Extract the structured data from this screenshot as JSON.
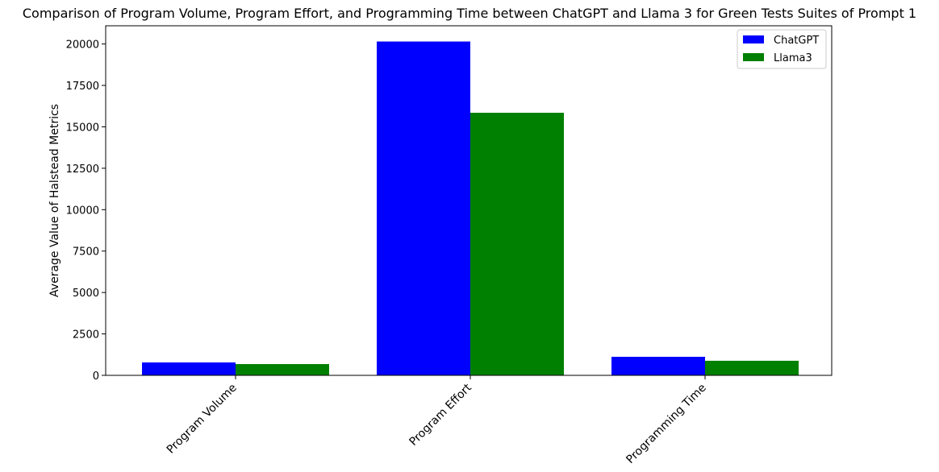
{
  "chart_data": {
    "type": "bar",
    "title": "Comparison of Program Volume, Program Effort, and Programming Time between ChatGPT and Llama 3 for Green Tests Suites of Prompt 1",
    "xlabel": "",
    "ylabel": "Average Value of Halstead Metrics",
    "categories": [
      "Program Volume",
      "Program Effort",
      "Programming Time"
    ],
    "series": [
      {
        "name": "ChatGPT",
        "color": "#0000ff",
        "values": [
          780,
          20150,
          1120
        ]
      },
      {
        "name": "Llama3",
        "color": "#008000",
        "values": [
          680,
          15850,
          880
        ]
      }
    ],
    "ylim": [
      0,
      21100
    ],
    "yticks": [
      0,
      2500,
      5000,
      7500,
      10000,
      12500,
      15000,
      17500,
      20000
    ],
    "grid": false,
    "legend_position": "top-right"
  }
}
